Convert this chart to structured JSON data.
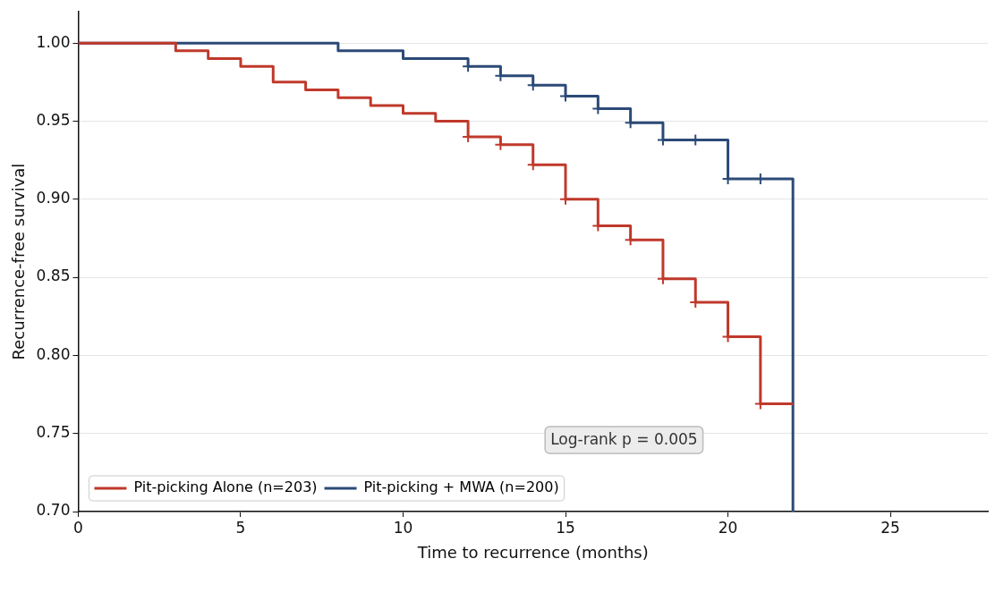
{
  "chart_data": {
    "type": "step",
    "xlabel": "Time to recurrence (months)",
    "ylabel": "Recurrence-free survival",
    "xlim": [
      0,
      28
    ],
    "xticks": [
      0,
      5,
      10,
      15,
      20,
      25
    ],
    "ylim": [
      0.7,
      1.02
    ],
    "yticks": [
      {
        "value": 0.7,
        "label": "0.70"
      },
      {
        "value": 0.75,
        "label": "0.75"
      },
      {
        "value": 0.8,
        "label": "0.80"
      },
      {
        "value": 0.85,
        "label": "0.85"
      },
      {
        "value": 0.9,
        "label": "0.90"
      },
      {
        "value": 0.95,
        "label": "0.95"
      },
      {
        "value": 1.0,
        "label": "1.00"
      }
    ],
    "grid": "y",
    "legend": "bottom left",
    "line_style": "solid",
    "marker": "none",
    "series": [
      {
        "name": "Pit-picking Alone (n=203)",
        "color": "#c0392b",
        "x": [
          0,
          3,
          4,
          5,
          6,
          7,
          8,
          9,
          10,
          11,
          12,
          13,
          14,
          15,
          16,
          17,
          18,
          19,
          20,
          21,
          22
        ],
        "values": [
          1.0,
          0.995,
          0.99,
          0.985,
          0.975,
          0.97,
          0.965,
          0.96,
          0.955,
          0.95,
          0.94,
          0.935,
          0.922,
          0.9,
          0.883,
          0.874,
          0.849,
          0.834,
          0.812,
          0.769,
          0.769
        ]
      },
      {
        "name": "Pit-picking + MWA (n=200)",
        "color": "#2c4a77",
        "x": [
          0,
          8,
          10,
          12,
          13,
          14,
          15,
          16,
          17,
          18,
          20,
          22
        ],
        "values": [
          1.0,
          0.995,
          0.99,
          0.985,
          0.979,
          0.973,
          0.966,
          0.958,
          0.949,
          0.938,
          0.913,
          0.7
        ]
      },
      {
        "type": "scatter",
        "marker": "cross",
        "color": "#c0392b",
        "x": [
          12,
          13,
          14,
          15,
          16,
          17,
          18,
          19,
          20,
          21
        ],
        "values": [
          0.94,
          0.935,
          0.922,
          0.9,
          0.883,
          0.874,
          0.849,
          0.834,
          0.812,
          0.769
        ]
      },
      {
        "type": "scatter",
        "marker": "cross",
        "color": "#2c4a77",
        "x": [
          12,
          13,
          14,
          15,
          16,
          17,
          18,
          19,
          20,
          21
        ],
        "values": [
          0.985,
          0.979,
          0.973,
          0.966,
          0.958,
          0.949,
          0.938,
          0.938,
          0.913,
          0.913
        ]
      }
    ],
    "annotations": [
      "Log-rank p = 0.005"
    ]
  }
}
